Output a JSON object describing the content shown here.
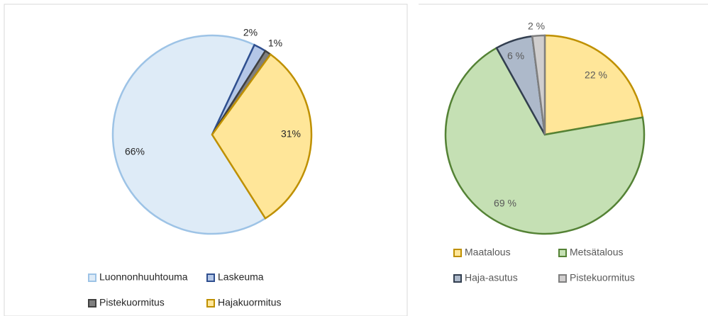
{
  "chart_data": [
    {
      "type": "pie",
      "categories": [
        "Luonnonhuuhtouma",
        "Laskeuma",
        "Pistekuormitus",
        "Hajakuormitus"
      ],
      "values": [
        66,
        2,
        1,
        31
      ],
      "value_labels": [
        "66%",
        "2%",
        "1%",
        "31%"
      ],
      "colors": [
        "#deebf7",
        "#b4c7e7",
        "#7f7f7f",
        "#ffe699"
      ],
      "edge_colors": [
        "#9dc3e6",
        "#2f4f8f",
        "#404040",
        "#bf9000"
      ]
    },
    {
      "type": "pie",
      "categories": [
        "Maatalous",
        "Metsätalous",
        "Haja-asutus",
        "Pistekuormitus"
      ],
      "values": [
        22,
        69,
        6,
        2
      ],
      "value_labels": [
        "22 %",
        "69 %",
        "6 %",
        "2 %"
      ],
      "colors": [
        "#ffe699",
        "#c5e0b4",
        "#adb9ca",
        "#d0cece"
      ],
      "edge_colors": [
        "#bf9000",
        "#548235",
        "#333f50",
        "#7f7f7f"
      ]
    }
  ]
}
